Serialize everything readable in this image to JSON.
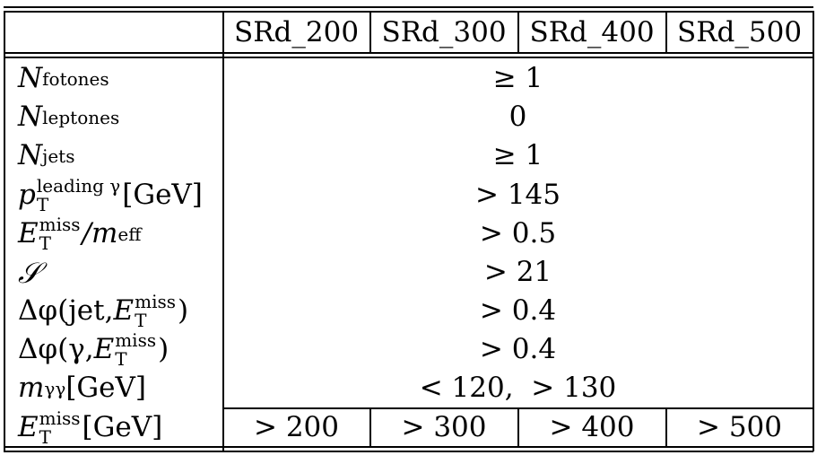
{
  "columns": [
    "SRd_200",
    "SRd_300",
    "SRd_400",
    "SRd_500"
  ],
  "rows": [
    {
      "id": "n-fotones",
      "symbol": "N",
      "sub": "fotones",
      "value": "≥ 1"
    },
    {
      "id": "n-leptones",
      "symbol": "N",
      "sub": "leptones",
      "value": "0"
    },
    {
      "id": "n-jets",
      "symbol": "N",
      "sub": "jets",
      "value": "≥ 1"
    },
    {
      "id": "pt-leading",
      "symbol": "p",
      "sup": "leading γ",
      "sub": "T",
      "unit": "[GeV]",
      "value": "> 145"
    },
    {
      "id": "etmiss-meff",
      "symbol": "E",
      "sup": "miss",
      "sub": "T",
      "rest": "/m",
      "rest_sub": "eff",
      "value": "> 0.5"
    },
    {
      "id": "significance",
      "symbol": "𝒮",
      "value": "> 21"
    },
    {
      "id": "dphi-jet",
      "prefix": "Δφ(jet, ",
      "symbol": "E",
      "sup": "miss",
      "sub": "T",
      "suffix": ")",
      "value": "> 0.4"
    },
    {
      "id": "dphi-gamma",
      "prefix": "Δφ(γ, ",
      "symbol": "E",
      "sup": "miss",
      "sub": "T",
      "suffix": ")",
      "value": "> 0.4"
    },
    {
      "id": "m-gammagamma",
      "symbol": "m",
      "sub": "γγ",
      "unit": " [GeV]",
      "value": "< 120,  > 130"
    },
    {
      "id": "etmiss",
      "symbol": "E",
      "sup": "miss",
      "sub": "T",
      "unit": " [GeV]",
      "values": [
        "> 200",
        "> 300",
        "> 400",
        "> 500"
      ]
    }
  ]
}
